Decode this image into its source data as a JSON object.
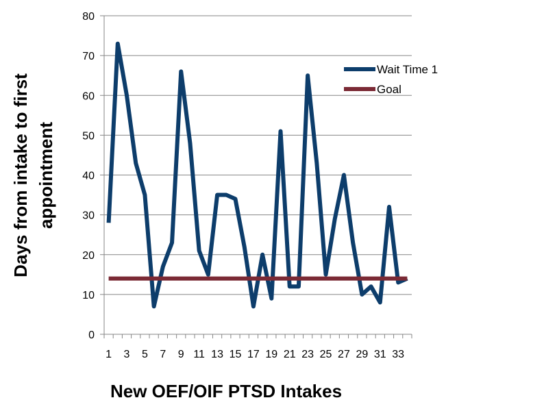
{
  "chart_data": {
    "type": "line",
    "title": "",
    "xlabel": "New OEF/OIF PTSD Intakes",
    "ylabel_lines": [
      "Days from intake to first",
      "appointment"
    ],
    "x": [
      1,
      2,
      3,
      4,
      5,
      6,
      7,
      8,
      9,
      10,
      11,
      12,
      13,
      14,
      15,
      16,
      17,
      18,
      19,
      20,
      21,
      22,
      23,
      24,
      25,
      26,
      27,
      28,
      29,
      30,
      31,
      32,
      33,
      34
    ],
    "x_tick_labels": [
      "1",
      "3",
      "5",
      "7",
      "9",
      "11",
      "13",
      "15",
      "17",
      "19",
      "21",
      "23",
      "25",
      "27",
      "29",
      "31",
      "33"
    ],
    "ylim": [
      0,
      80
    ],
    "y_ticks": [
      "0",
      "10",
      "20",
      "30",
      "40",
      "50",
      "60",
      "70",
      "80"
    ],
    "grid": true,
    "legend_position": "top-right",
    "series": [
      {
        "name": "Wait Time 1",
        "color": "#0d3d6b",
        "values": [
          28,
          73,
          60,
          43,
          35,
          7,
          17,
          23,
          66,
          48,
          21,
          15,
          35,
          35,
          34,
          22,
          7,
          20,
          9,
          51,
          12,
          12,
          65,
          43,
          15,
          29,
          40,
          23,
          10,
          12,
          8,
          32,
          13,
          14
        ]
      },
      {
        "name": "Goal",
        "color": "#7b2a35",
        "values": [
          14,
          14,
          14,
          14,
          14,
          14,
          14,
          14,
          14,
          14,
          14,
          14,
          14,
          14,
          14,
          14,
          14,
          14,
          14,
          14,
          14,
          14,
          14,
          14,
          14,
          14,
          14,
          14,
          14,
          14,
          14,
          14,
          14,
          14
        ]
      }
    ]
  }
}
